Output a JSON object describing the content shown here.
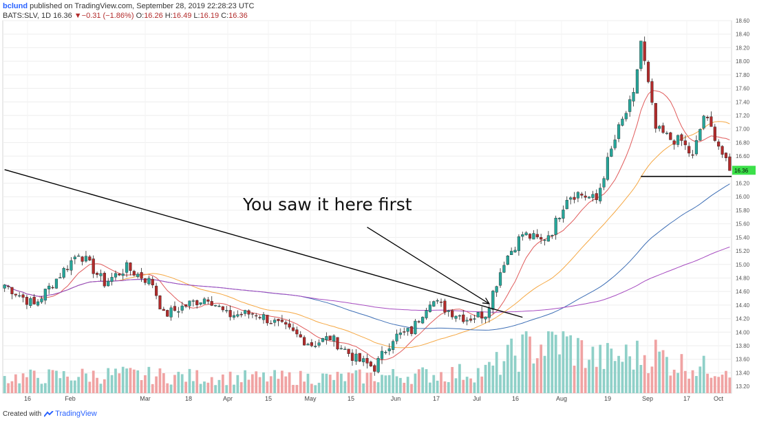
{
  "header": {
    "line1": {
      "user": "bclund",
      "text": " published on TradingView.com, September 28, 2019 22:28:23 UTC"
    },
    "line2": {
      "symbol": "BATS:SLV, 1D",
      "last": "16.36",
      "change_arrow": "▼",
      "change": "−0.31 (−1.86%)",
      "O": "O:",
      "O_val": "16.26",
      "H": "H:",
      "H_val": "16.49",
      "L": "L:",
      "L_val": "16.19",
      "C": "C:",
      "C_val": "16.36"
    }
  },
  "footer": {
    "created_with": "Created with",
    "brand": "TradingView"
  },
  "chart_data": {
    "type": "candlestick",
    "symbol": "BATS:SLV",
    "interval": "1D",
    "annotation": "You saw it here first",
    "price_label": "16.36",
    "ylim": [
      13.1,
      18.6
    ],
    "y_ticks": [
      "18.60",
      "18.40",
      "18.20",
      "18.00",
      "17.80",
      "17.60",
      "17.40",
      "17.20",
      "17.00",
      "16.80",
      "16.60",
      "16.40",
      "16.20",
      "16.00",
      "15.80",
      "15.60",
      "15.40",
      "15.20",
      "15.00",
      "14.80",
      "14.60",
      "14.40",
      "14.20",
      "14.00",
      "13.80",
      "13.60",
      "13.40",
      "13.20"
    ],
    "x_ticks": [
      "16",
      "Feb",
      "Mar",
      "18",
      "Apr",
      "15",
      "May",
      "15",
      "Jun",
      "17",
      "Jul",
      "16",
      "Aug",
      "19",
      "Sep",
      "17",
      "Oct"
    ],
    "colors": {
      "up": "#26a69a",
      "down": "#b22b2b",
      "ma_short": "#e05a5a",
      "ma_mid": "#f5a742",
      "ma_long": "#3d6eb5",
      "ma_xlong": "#a64bc0",
      "volume_up": "#8fd0c8",
      "volume_down": "#f0a3a3",
      "trendline": "#000000",
      "support": "#000000",
      "label_bg": "#3ce04a"
    },
    "price_anchors": [
      [
        0,
        14.7
      ],
      [
        8,
        14.4
      ],
      [
        15,
        14.85
      ],
      [
        20,
        15.18
      ],
      [
        27,
        14.73
      ],
      [
        33,
        14.95
      ],
      [
        40,
        14.72
      ],
      [
        43,
        14.25
      ],
      [
        50,
        14.42
      ],
      [
        55,
        14.52
      ],
      [
        60,
        14.25
      ],
      [
        68,
        14.28
      ],
      [
        75,
        14.08
      ],
      [
        83,
        13.82
      ],
      [
        88,
        13.92
      ],
      [
        95,
        13.6
      ],
      [
        100,
        13.48
      ],
      [
        105,
        13.92
      ],
      [
        110,
        14.02
      ],
      [
        115,
        14.48
      ],
      [
        120,
        14.32
      ],
      [
        125,
        14.2
      ],
      [
        130,
        14.28
      ],
      [
        135,
        15.05
      ],
      [
        140,
        15.45
      ],
      [
        145,
        15.35
      ],
      [
        148,
        15.5
      ],
      [
        152,
        16.0
      ],
      [
        155,
        16.05
      ],
      [
        160,
        15.95
      ],
      [
        163,
        16.52
      ],
      [
        166,
        17.0
      ],
      [
        170,
        17.48
      ],
      [
        172,
        18.3
      ],
      [
        176,
        17.0
      ],
      [
        180,
        16.85
      ],
      [
        183,
        16.82
      ],
      [
        186,
        16.58
      ],
      [
        189,
        17.2
      ],
      [
        192,
        16.9
      ],
      [
        196,
        16.36
      ]
    ],
    "volume_anchors": [
      [
        0,
        0.25
      ],
      [
        30,
        0.3
      ],
      [
        60,
        0.25
      ],
      [
        90,
        0.25
      ],
      [
        115,
        0.3
      ],
      [
        130,
        0.35
      ],
      [
        140,
        0.7
      ],
      [
        150,
        0.85
      ],
      [
        160,
        0.55
      ],
      [
        170,
        0.6
      ],
      [
        176,
        0.65
      ],
      [
        180,
        0.5
      ],
      [
        190,
        0.4
      ],
      [
        196,
        0.45
      ]
    ],
    "support_level": 16.3,
    "trendline": {
      "x0": 0,
      "y0": 16.4,
      "x1": 140,
      "y1": 14.22
    },
    "arrow": {
      "from": [
        98,
        15.55
      ],
      "to": [
        131,
        14.42
      ]
    }
  }
}
